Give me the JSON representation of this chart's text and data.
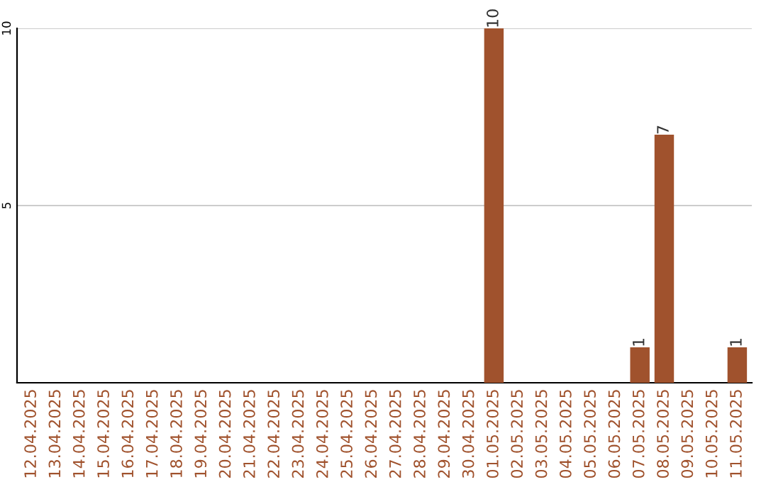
{
  "chart_data": {
    "type": "bar",
    "categories": [
      "12.04.2025",
      "13.04.2025",
      "14.04.2025",
      "15.04.2025",
      "16.04.2025",
      "17.04.2025",
      "18.04.2025",
      "19.04.2025",
      "20.04.2025",
      "21.04.2025",
      "22.04.2025",
      "23.04.2025",
      "24.04.2025",
      "25.04.2025",
      "26.04.2025",
      "27.04.2025",
      "28.04.2025",
      "29.04.2025",
      "30.04.2025",
      "01.05.2025",
      "02.05.2025",
      "03.05.2025",
      "04.05.2025",
      "05.05.2025",
      "06.05.2025",
      "07.05.2025",
      "08.05.2025",
      "09.05.2025",
      "10.05.2025",
      "11.05.2025"
    ],
    "values": [
      0,
      0,
      0,
      0,
      0,
      0,
      0,
      0,
      0,
      0,
      0,
      0,
      0,
      0,
      0,
      0,
      0,
      0,
      0,
      10,
      0,
      0,
      0,
      0,
      0,
      1,
      7,
      0,
      0,
      1
    ],
    "value_labels": [
      null,
      null,
      null,
      null,
      null,
      null,
      null,
      null,
      null,
      null,
      null,
      null,
      null,
      null,
      null,
      null,
      null,
      null,
      null,
      "10",
      null,
      null,
      null,
      null,
      null,
      "1",
      "7",
      null,
      null,
      "1"
    ],
    "color": "#a0522d",
    "ylim": [
      0,
      10
    ],
    "yticks": [
      5,
      10
    ],
    "grid": "y"
  }
}
